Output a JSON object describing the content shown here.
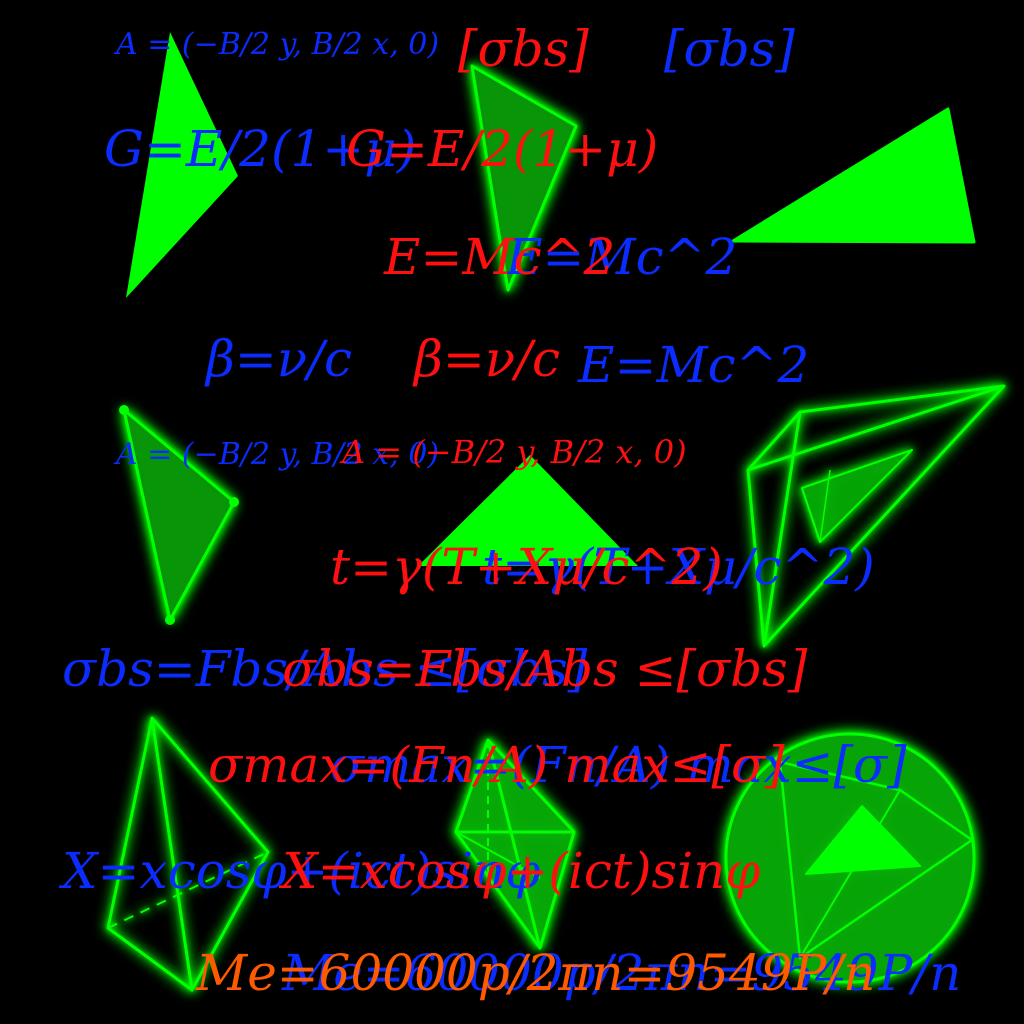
{
  "colors": {
    "background": "#000000",
    "shape_green": "#00ff00",
    "shape_fill_dim": "#0b6b0b",
    "text_blue": "#0a2cff",
    "text_red": "#ff1010",
    "text_orange": "#ff5a00"
  },
  "formulas": {
    "f01": "A = (−B/2 y, B/2 x, 0)",
    "f02": "[σbs]",
    "f03": "[σbs]",
    "f04": "G=E/2(1+μ)",
    "f05": "G=E/2(1+μ)",
    "f06": "E=Mc^2",
    "f07": "E=Mc^2",
    "f08": "β=ν/c",
    "f09": "β=ν/c",
    "f10": "E=Mc^2",
    "f11": "A = (−B/2 y, B/2 x, 0)",
    "f12": "A = (−B/2 y, B/2 x, 0)",
    "f13": "t=γ(T+Xμ/c^2)",
    "f14": "t=γ(T+Xμ/c^2)",
    "f15": "σbs=Fbs/Abs ≤[σbs]",
    "f16": "σbs=Fbs/Abs ≤[σbs]",
    "f17": "σmax=(Fn/A) max≤[σ]",
    "f18": "σmax=(Fn/A) max≤[σ]",
    "f19": "X=xcosφ+(ict)sinφ",
    "f20": "X=xcosφ+(ict)sinφ",
    "f21": "Me=60000p/2πn=9549P/n",
    "f22": "Me=60000p/2πn=9549P/n"
  }
}
